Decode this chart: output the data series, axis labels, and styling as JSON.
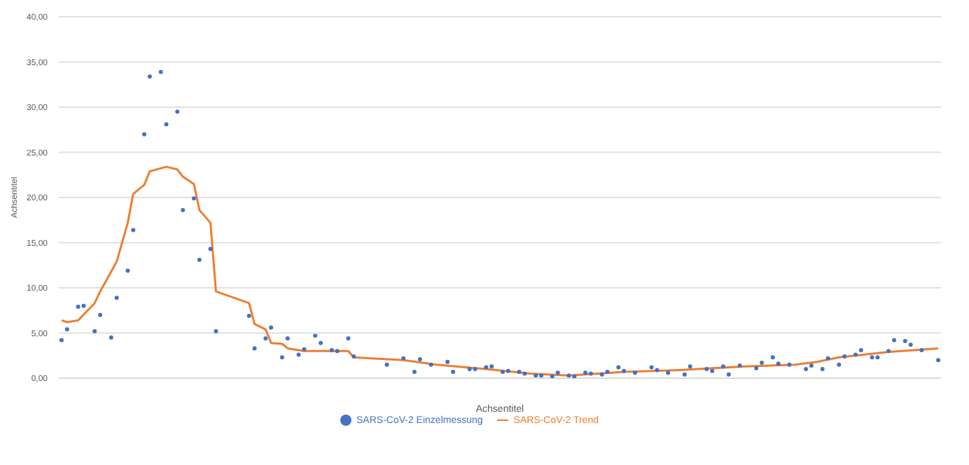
{
  "chart_data": {
    "type": "line",
    "xlabel": "Achsentitel",
    "ylabel": "Achsentitel",
    "categories": [
      null,
      null,
      null,
      null,
      null,
      null,
      null,
      null,
      null,
      null,
      null,
      null,
      null,
      null,
      null,
      null,
      null,
      null,
      null,
      null,
      null,
      null,
      null,
      null,
      null,
      null,
      null,
      null,
      null,
      null,
      null,
      null,
      null,
      null,
      null,
      null,
      null,
      null,
      null,
      null,
      null,
      null,
      null,
      null,
      null,
      null,
      null,
      null,
      null,
      null,
      null,
      null,
      null,
      null,
      null,
      null,
      null,
      null,
      null,
      null,
      null,
      null,
      null,
      null,
      null,
      null,
      null,
      null,
      null,
      null,
      null,
      null,
      null,
      null,
      null,
      null,
      null,
      null,
      null,
      null,
      null,
      null,
      null,
      null,
      null,
      null,
      null,
      null,
      null,
      null,
      null,
      null,
      null,
      null,
      null,
      null,
      null,
      null,
      null,
      null,
      null,
      null,
      null,
      null,
      null,
      null,
      null,
      null,
      null,
      null,
      null,
      null,
      null,
      null,
      null,
      null,
      null,
      null,
      null,
      null,
      null,
      null,
      null,
      null,
      null,
      null,
      null,
      null,
      null,
      null,
      null,
      null,
      null,
      null,
      null,
      null,
      null,
      null,
      null,
      null,
      null,
      null,
      null,
      null,
      null,
      null,
      null,
      null,
      null,
      null,
      null,
      null,
      null,
      null,
      null,
      null,
      null,
      null,
      null,
      null
    ],
    "series": [
      {
        "name": "SARS-CoV-2 Trend",
        "color": "#ed7d31",
        "marker": "none",
        "values": [
          6.4,
          6.2,
          null,
          6.4,
          null,
          null,
          8.3,
          9.6,
          null,
          null,
          12.9,
          null,
          17.2,
          20.4,
          null,
          21.4,
          22.9,
          null,
          null,
          23.4,
          null,
          23.1,
          22.3,
          null,
          21.5,
          18.6,
          null,
          17.2,
          9.6,
          null,
          null,
          null,
          null,
          null,
          8.3,
          6.0,
          null,
          5.4,
          3.9,
          null,
          3.8,
          3.3,
          null,
          null,
          3.0,
          null,
          null,
          null,
          null,
          null,
          null,
          null,
          3.0,
          2.3,
          null,
          null,
          null,
          null,
          null,
          null,
          null,
          null,
          2.0,
          null,
          null,
          null,
          null,
          null,
          1.5,
          null,
          null,
          null,
          null,
          null,
          null,
          null,
          null,
          1.0,
          null,
          null,
          null,
          null,
          null,
          null,
          null,
          0.5,
          null,
          null,
          null,
          null,
          null,
          null,
          0.3,
          null,
          null,
          null,
          null,
          null,
          null,
          null,
          null,
          null,
          0.7,
          null,
          null,
          null,
          null,
          null,
          null,
          null,
          null,
          null,
          0.9,
          null,
          null,
          null,
          null,
          null,
          null,
          null,
          null,
          null,
          null,
          null,
          1.3,
          null,
          null,
          null,
          null,
          null,
          null,
          null,
          null,
          1.5,
          null,
          null,
          null,
          1.8,
          null,
          null,
          null,
          2.3,
          null,
          null,
          null,
          null,
          null,
          null,
          null,
          null,
          2.9,
          null,
          null,
          null,
          null,
          null,
          null,
          null,
          null,
          3.3
        ]
      },
      {
        "name": "SARS-CoV-2 Einzelmessung",
        "type": "scatter",
        "color": "#4472c4",
        "marker": "circle",
        "values": [
          4.2,
          5.4,
          null,
          7.9,
          8.0,
          null,
          5.2,
          7.0,
          null,
          4.5,
          8.9,
          null,
          11.9,
          16.4,
          null,
          27.0,
          33.4,
          null,
          33.9,
          28.1,
          null,
          29.5,
          18.6,
          null,
          19.9,
          13.1,
          null,
          14.3,
          5.2,
          null,
          null,
          null,
          null,
          null,
          6.9,
          3.3,
          null,
          4.4,
          5.6,
          null,
          2.3,
          4.4,
          null,
          2.6,
          3.2,
          null,
          4.7,
          3.9,
          null,
          3.1,
          3.0,
          null,
          4.4,
          2.4,
          null,
          null,
          null,
          null,
          null,
          1.5,
          null,
          null,
          2.2,
          null,
          0.7,
          2.1,
          null,
          1.5,
          null,
          null,
          1.8,
          0.7,
          null,
          null,
          1.0,
          1.0,
          null,
          1.2,
          1.3,
          null,
          0.7,
          0.8,
          null,
          0.7,
          0.5,
          null,
          0.3,
          0.3,
          null,
          0.2,
          0.6,
          null,
          0.3,
          0.2,
          null,
          0.6,
          0.5,
          null,
          0.4,
          0.7,
          null,
          1.2,
          0.8,
          null,
          0.6,
          null,
          null,
          1.2,
          0.9,
          null,
          0.6,
          null,
          null,
          0.4,
          1.3,
          null,
          null,
          1.0,
          0.8,
          null,
          1.3,
          0.4,
          null,
          1.4,
          null,
          null,
          1.1,
          1.7,
          null,
          2.3,
          1.6,
          null,
          1.5,
          null,
          null,
          1.0,
          1.4,
          null,
          1.0,
          2.2,
          null,
          1.5,
          2.4,
          null,
          2.6,
          3.1,
          null,
          2.3,
          2.3,
          null,
          3.0,
          4.2,
          null,
          4.1,
          3.7,
          null,
          3.1,
          null,
          null,
          2.0
        ]
      }
    ],
    "ylim": [
      0,
      40
    ],
    "yticks": [
      {
        "value": 0,
        "label": "0,00"
      },
      {
        "value": 5,
        "label": "5,00"
      },
      {
        "value": 10,
        "label": "10,00"
      },
      {
        "value": 15,
        "label": "15,00"
      },
      {
        "value": 20,
        "label": "20,00"
      },
      {
        "value": 25,
        "label": "25,00"
      },
      {
        "value": 30,
        "label": "30,00"
      },
      {
        "value": 35,
        "label": "35,00"
      },
      {
        "value": 40,
        "label": "40,00"
      }
    ],
    "grid": "y",
    "legend": "bottom"
  }
}
